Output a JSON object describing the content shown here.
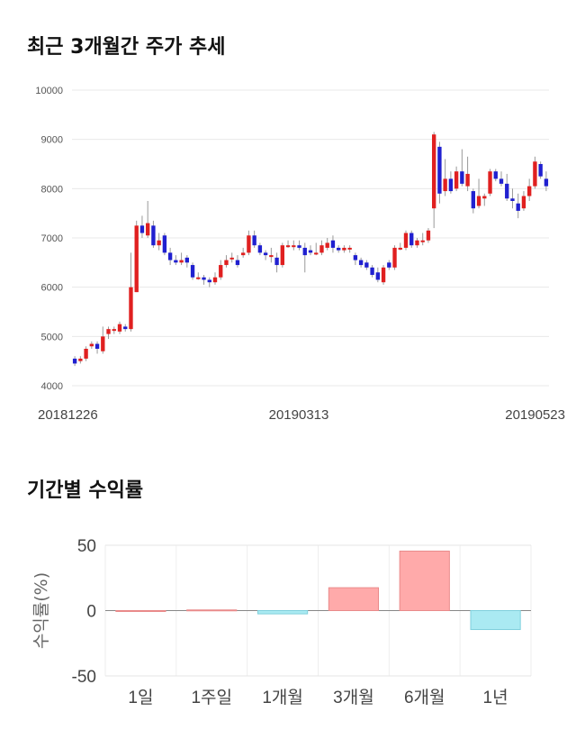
{
  "section1_title": "최근 3개월간 주가 추세",
  "section2_title": "기간별 수익률",
  "chart_data": [
    {
      "type": "candlestick",
      "title": "최근 3개월간 주가 추세",
      "ylim": [
        4000,
        10000
      ],
      "yticks": [
        "10000",
        "9000",
        "8000",
        "7000",
        "6000",
        "5000",
        "4000"
      ],
      "xticks": [
        "20181226",
        "20190313",
        "20190523"
      ],
      "grid": true,
      "up_color": "#e02020",
      "down_color": "#2020d0",
      "candles": [
        [
          4550,
          4450,
          4600,
          4400
        ],
        [
          4500,
          4550,
          4600,
          4450
        ],
        [
          4550,
          4750,
          4800,
          4500
        ],
        [
          4800,
          4850,
          4900,
          4750
        ],
        [
          4850,
          4750,
          4900,
          4650
        ],
        [
          4700,
          5000,
          5200,
          4650
        ],
        [
          5050,
          5150,
          5200,
          4950
        ],
        [
          5150,
          5150,
          5200,
          5050
        ],
        [
          5100,
          5250,
          5300,
          5050
        ],
        [
          5200,
          5150,
          5250,
          5100
        ],
        [
          5150,
          6000,
          6700,
          5100
        ],
        [
          5900,
          7250,
          7350,
          5900
        ],
        [
          7250,
          7100,
          7450,
          7000
        ],
        [
          7050,
          7300,
          7750,
          7000
        ],
        [
          7250,
          6850,
          7350,
          6800
        ],
        [
          6850,
          6950,
          7100,
          6750
        ],
        [
          7050,
          6700,
          7100,
          6650
        ],
        [
          6700,
          6550,
          6800,
          6450
        ],
        [
          6550,
          6500,
          6650,
          6450
        ],
        [
          6500,
          6550,
          6700,
          6450
        ],
        [
          6600,
          6500,
          6650,
          6400
        ],
        [
          6450,
          6200,
          6500,
          6150
        ],
        [
          6200,
          6200,
          6300,
          6150
        ],
        [
          6200,
          6150,
          6250,
          6050
        ],
        [
          6150,
          6100,
          6200,
          6000
        ],
        [
          6100,
          6200,
          6300,
          6050
        ],
        [
          6200,
          6450,
          6550,
          6150
        ],
        [
          6450,
          6550,
          6650,
          6400
        ],
        [
          6600,
          6600,
          6700,
          6500
        ],
        [
          6550,
          6450,
          6650,
          6400
        ],
        [
          6650,
          6700,
          6800,
          6600
        ],
        [
          6700,
          7050,
          7150,
          6650
        ],
        [
          7050,
          6850,
          7150,
          6800
        ],
        [
          6850,
          6700,
          6900,
          6650
        ],
        [
          6700,
          6650,
          6750,
          6550
        ],
        [
          6650,
          6650,
          6800,
          6500
        ],
        [
          6600,
          6450,
          6700,
          6300
        ],
        [
          6450,
          6850,
          6900,
          6400
        ],
        [
          6850,
          6850,
          6950,
          6800
        ],
        [
          6850,
          6850,
          6950,
          6750
        ],
        [
          6850,
          6800,
          6950,
          6750
        ],
        [
          6800,
          6650,
          6900,
          6300
        ],
        [
          6750,
          6700,
          6850,
          6650
        ],
        [
          6700,
          6700,
          6900,
          6650
        ],
        [
          6700,
          6850,
          6950,
          6650
        ],
        [
          6800,
          6900,
          7000,
          6750
        ],
        [
          6950,
          6800,
          7050,
          6700
        ],
        [
          6800,
          6750,
          6850,
          6700
        ],
        [
          6750,
          6800,
          6850,
          6700
        ],
        [
          6800,
          6800,
          6850,
          6700
        ],
        [
          6650,
          6550,
          6700,
          6450
        ],
        [
          6550,
          6450,
          6600,
          6400
        ],
        [
          6500,
          6400,
          6550,
          6350
        ],
        [
          6400,
          6250,
          6450,
          6200
        ],
        [
          6300,
          6150,
          6400,
          6100
        ],
        [
          6100,
          6400,
          6450,
          6050
        ],
        [
          6500,
          6400,
          6550,
          6350
        ],
        [
          6400,
          6800,
          6850,
          6350
        ],
        [
          6800,
          6800,
          6900,
          6750
        ],
        [
          6800,
          7100,
          7150,
          6750
        ],
        [
          7100,
          6850,
          7150,
          6800
        ],
        [
          6850,
          6950,
          7000,
          6800
        ],
        [
          6950,
          6950,
          7100,
          6850
        ],
        [
          6950,
          7150,
          7200,
          6900
        ],
        [
          7600,
          9100,
          9150,
          7200
        ],
        [
          8850,
          7900,
          8950,
          7700
        ],
        [
          7950,
          8200,
          8600,
          7850
        ],
        [
          8200,
          7950,
          8350,
          7900
        ],
        [
          8000,
          8350,
          8450,
          7950
        ],
        [
          8350,
          8100,
          8800,
          8050
        ],
        [
          8050,
          8300,
          8650,
          7950
        ],
        [
          7950,
          7600,
          8000,
          7500
        ],
        [
          7650,
          7850,
          8200,
          7600
        ],
        [
          7800,
          7850,
          7900,
          7650
        ],
        [
          7900,
          8350,
          8400,
          7850
        ],
        [
          8350,
          8200,
          8400,
          8150
        ],
        [
          8200,
          8100,
          8350,
          8050
        ],
        [
          8100,
          7800,
          8300,
          7750
        ],
        [
          7800,
          7750,
          8000,
          7600
        ],
        [
          7700,
          7550,
          7900,
          7400
        ],
        [
          7600,
          7850,
          7950,
          7550
        ],
        [
          7850,
          8050,
          8200,
          7750
        ],
        [
          8050,
          8550,
          8650,
          8000
        ],
        [
          8500,
          8250,
          8550,
          8200
        ],
        [
          8200,
          8050,
          8350,
          7950
        ]
      ]
    },
    {
      "type": "bar",
      "title": "기간별 수익률",
      "ylabel": "수익률(%)",
      "ylim": [
        -50,
        50
      ],
      "yticks": [
        "50",
        "0",
        "-50"
      ],
      "categories": [
        "1일",
        "1주일",
        "1개월",
        "3개월",
        "6개월",
        "1년"
      ],
      "values": [
        0,
        0.5,
        -2.5,
        17.5,
        45.5,
        -14.5
      ],
      "pos_color": "#ffaaaa",
      "neg_color": "#aaeaf2"
    }
  ]
}
